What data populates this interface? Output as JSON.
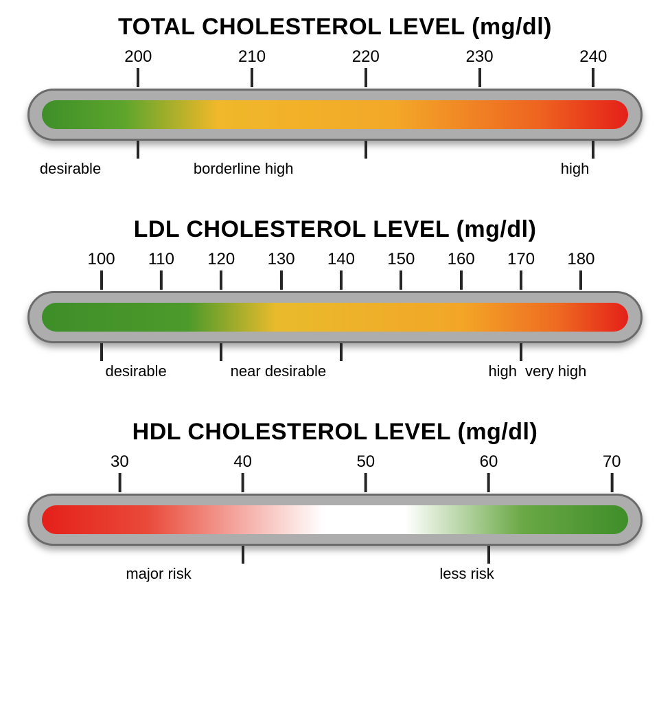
{
  "page_background": "#ffffff",
  "bar_track_color": "#adadad",
  "bar_border_color": "#6b6b6b",
  "tick_color": "#262626",
  "title_fontsize": 34,
  "tick_label_fontsize": 24,
  "category_label_fontsize": 22,
  "total": {
    "title": "TOTAL CHOLESTEROL LEVEL (mg/dl)",
    "ticks": [
      200,
      210,
      220,
      230,
      240
    ],
    "tick_positions_pct": [
      18,
      36.5,
      55,
      73.5,
      92
    ],
    "gradient_stops": [
      {
        "pct": 0,
        "color": "#3e8e29"
      },
      {
        "pct": 14,
        "color": "#5da52c"
      },
      {
        "pct": 30,
        "color": "#f0b82a"
      },
      {
        "pct": 60,
        "color": "#f3a828"
      },
      {
        "pct": 85,
        "color": "#ee6320"
      },
      {
        "pct": 100,
        "color": "#e42019"
      }
    ],
    "bottom_ticks_pct": [
      18,
      55,
      92
    ],
    "labels": {
      "desirable": "desirable",
      "borderline_high": "borderline high",
      "high": "high"
    }
  },
  "ldl": {
    "title": "LDL CHOLESTEROL LEVEL (mg/dl)",
    "ticks": [
      100,
      110,
      120,
      130,
      140,
      150,
      160,
      170,
      180
    ],
    "tick_positions_pct": [
      12,
      21.75,
      31.5,
      41.25,
      51,
      60.75,
      70.5,
      80.25,
      90
    ],
    "gradient_stops": [
      {
        "pct": 0,
        "color": "#3e8e29"
      },
      {
        "pct": 25,
        "color": "#4d9a2b"
      },
      {
        "pct": 40,
        "color": "#e9bb2c"
      },
      {
        "pct": 72,
        "color": "#f3a527"
      },
      {
        "pct": 88,
        "color": "#ee6a21"
      },
      {
        "pct": 100,
        "color": "#e42019"
      }
    ],
    "bottom_ticks_pct": [
      12,
      31.5,
      51,
      80.25
    ],
    "labels": {
      "desirable": "desirable",
      "near_desirable": "near desirable",
      "high": "high",
      "very_high": "very high"
    }
  },
  "hdl": {
    "title": "HDL CHOLESTEROL LEVEL (mg/dl)",
    "ticks": [
      30,
      40,
      50,
      60,
      70
    ],
    "tick_positions_pct": [
      15,
      35,
      55,
      75,
      95
    ],
    "gradient_stops": [
      {
        "pct": 0,
        "color": "#e42019"
      },
      {
        "pct": 18,
        "color": "#e94a3a"
      },
      {
        "pct": 48,
        "color": "#ffffff"
      },
      {
        "pct": 62,
        "color": "#ffffff"
      },
      {
        "pct": 82,
        "color": "#6aa845"
      },
      {
        "pct": 100,
        "color": "#3e8e29"
      }
    ],
    "bottom_ticks_pct": [
      35,
      75
    ],
    "labels": {
      "major_risk": "major risk",
      "less_risk": "less risk"
    }
  }
}
